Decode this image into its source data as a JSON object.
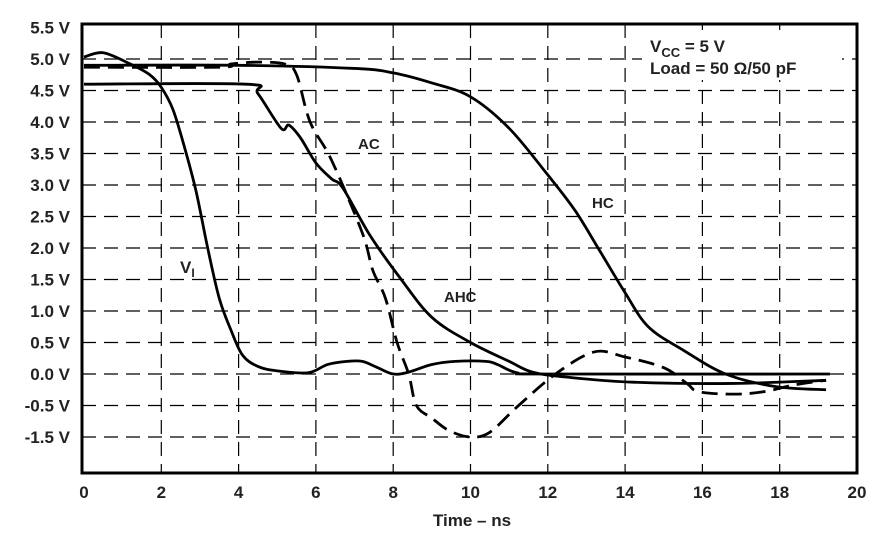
{
  "chart_data": {
    "type": "line",
    "title": "",
    "xlabel": "Time – ns",
    "ylabel": "",
    "xlim": [
      0,
      20
    ],
    "ylim": [
      -1.5,
      5.5
    ],
    "grid": true,
    "x_ticks": [
      0,
      2,
      4,
      6,
      8,
      10,
      12,
      14,
      16,
      18,
      20
    ],
    "y_ticks": [
      {
        "value": 5.5,
        "label": "5.5 V"
      },
      {
        "value": 5.0,
        "label": "5.0 V"
      },
      {
        "value": 4.5,
        "label": "4.5 V"
      },
      {
        "value": 4.0,
        "label": "4.0 V"
      },
      {
        "value": 3.5,
        "label": "3.5 V"
      },
      {
        "value": 3.0,
        "label": "3.0 V"
      },
      {
        "value": 2.5,
        "label": "2.5 V"
      },
      {
        "value": 2.0,
        "label": "2.0 V"
      },
      {
        "value": 1.5,
        "label": "1.5 V"
      },
      {
        "value": 1.0,
        "label": "1.0 V"
      },
      {
        "value": 0.5,
        "label": "0.5 V"
      },
      {
        "value": 0.0,
        "label": "0.0 V"
      },
      {
        "value": -0.5,
        "label": "-0.5 V"
      },
      {
        "value": -1.5,
        "label": "-1.5 V"
      }
    ],
    "annotation": {
      "vcc_main": "V",
      "vcc_sub": "CC",
      "vcc_rest": " = 5 V",
      "load": "Load = 50 Ω/50 pF"
    },
    "series": [
      {
        "name": "VI",
        "label_main": "V",
        "label_sub": "I",
        "style": "solid",
        "x": [
          0,
          0.5,
          1.2,
          1.7,
          2.0,
          2.3,
          2.6,
          2.9,
          3.2,
          3.5,
          3.8,
          4.1,
          4.5,
          5.0,
          5.8,
          6.3,
          6.8,
          7.2,
          7.6,
          8.0,
          8.4,
          9.0,
          9.6,
          10.4,
          10.7,
          11.2,
          12.0,
          19.3
        ],
        "y": [
          5.03,
          5.1,
          4.92,
          4.75,
          4.55,
          4.2,
          3.6,
          2.9,
          2.0,
          1.2,
          0.7,
          0.3,
          0.12,
          0.05,
          0.02,
          0.15,
          0.2,
          0.2,
          0.1,
          0.0,
          0.03,
          0.15,
          0.2,
          0.2,
          0.15,
          0.02,
          0.0,
          0.0
        ]
      },
      {
        "name": "AHC",
        "style": "solid",
        "x": [
          0,
          4.2,
          4.5,
          5.1,
          5.3,
          5.6,
          6.0,
          6.4,
          6.7,
          7.4,
          8.16,
          9.0,
          10.0,
          11.0,
          11.6,
          12.5,
          14.2,
          16.8,
          19.2
        ],
        "y": [
          4.6,
          4.6,
          4.45,
          3.9,
          3.95,
          3.75,
          3.35,
          3.1,
          2.95,
          2.2,
          1.54,
          0.9,
          0.5,
          0.2,
          0.03,
          -0.05,
          -0.13,
          -0.15,
          -0.1
        ]
      },
      {
        "name": "AC",
        "style": "dashed",
        "x": [
          0,
          3.5,
          3.8,
          4.5,
          5.2,
          5.5,
          5.85,
          6.4,
          7.2,
          7.47,
          7.8,
          8.1,
          8.4,
          8.6,
          9.0,
          9.45,
          10.0,
          10.5,
          11.2,
          12.2,
          13.2,
          14.0,
          15.0,
          15.6,
          15.9,
          16.8,
          17.6,
          18.4,
          19.2
        ],
        "y": [
          4.87,
          4.87,
          4.92,
          4.95,
          4.92,
          4.75,
          4.0,
          3.4,
          2.24,
          1.65,
          1.2,
          0.5,
          0.0,
          -0.5,
          -0.9,
          -1.3,
          -1.5,
          -1.35,
          -0.55,
          0.0,
          0.35,
          0.27,
          0.1,
          -0.15,
          -0.28,
          -0.32,
          -0.28,
          -0.17,
          -0.1
        ]
      },
      {
        "name": "HC",
        "style": "solid",
        "x": [
          0,
          4,
          7,
          8,
          9,
          10,
          11,
          12,
          12.7,
          13.33,
          14.0,
          14.6,
          15.5,
          16.6,
          17.9,
          19.2
        ],
        "y": [
          4.9,
          4.9,
          4.85,
          4.78,
          4.62,
          4.4,
          3.9,
          3.16,
          2.6,
          1.97,
          1.29,
          0.75,
          0.38,
          0.0,
          -0.2,
          -0.25
        ]
      }
    ]
  }
}
